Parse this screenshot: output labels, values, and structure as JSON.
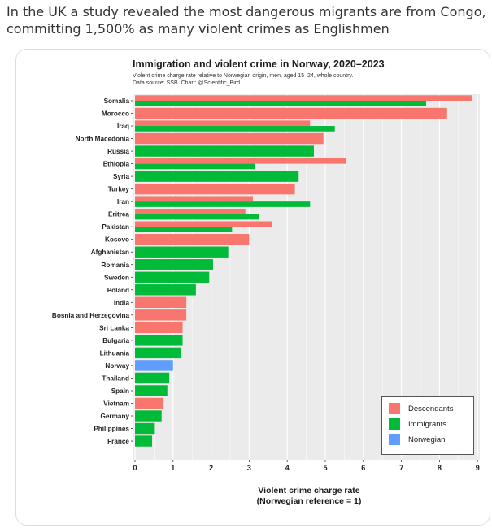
{
  "tweet": {
    "line1": "In the UK a study revealed the most dangerous migrants are from Congo,",
    "line2": "committing 1,500% as many violent crimes as Englishmen"
  },
  "colors": {
    "Descendants": "#f8766d",
    "Immigrants": "#00ba38",
    "Norwegian": "#619cff",
    "panel": "#ebebeb",
    "grid": "#ffffff"
  },
  "chart_data": {
    "type": "bar",
    "orientation": "horizontal",
    "title": "Immigration and violent crime in Norway, 2020–2023",
    "subtitle": "Violent crime charge rate relative to Norwegian origin, men, aged 15–24, whole country.",
    "source": "Data source: SSB.  Chart: @Scientific_Bird",
    "xlabel": "Violent crime charge rate",
    "xlabel2": "(Norwegian reference = 1)",
    "xlim": [
      0,
      9
    ],
    "xticks": [
      "0",
      "1",
      "2",
      "3",
      "4",
      "5",
      "6",
      "7",
      "8",
      "9"
    ],
    "grid": true,
    "legend_position": "bottom-right",
    "categories": [
      "Somalia",
      "Morocco",
      "Iraq",
      "North Macedonia",
      "Russia",
      "Ethiopia",
      "Syria",
      "Turkey",
      "Iran",
      "Eritrea",
      "Pakistan",
      "Kosovo",
      "Afghanistan",
      "Romania",
      "Sweden",
      "Poland",
      "India",
      "Bosnia and Herzegovina",
      "Sri Lanka",
      "Bulgaria",
      "Lithuania",
      "Norway",
      "Thailand",
      "Spain",
      "Vietnam",
      "Germany",
      "Philippines",
      "France"
    ],
    "series": [
      {
        "name": "Descendants",
        "values": [
          8.85,
          8.2,
          4.6,
          4.95,
          null,
          5.55,
          null,
          4.2,
          3.1,
          2.9,
          3.6,
          3.0,
          null,
          null,
          null,
          null,
          1.35,
          1.35,
          1.25,
          null,
          null,
          null,
          null,
          null,
          0.75,
          null,
          null,
          null
        ]
      },
      {
        "name": "Immigrants",
        "values": [
          7.65,
          null,
          5.25,
          null,
          4.7,
          3.15,
          4.3,
          null,
          4.6,
          3.25,
          2.55,
          null,
          2.45,
          2.05,
          1.95,
          1.6,
          null,
          null,
          null,
          1.25,
          1.2,
          null,
          0.9,
          0.85,
          null,
          0.7,
          0.5,
          0.45
        ]
      },
      {
        "name": "Norwegian",
        "values": [
          null,
          null,
          null,
          null,
          null,
          null,
          null,
          null,
          null,
          null,
          null,
          null,
          null,
          null,
          null,
          null,
          null,
          null,
          null,
          null,
          null,
          1.0,
          null,
          null,
          null,
          null,
          null,
          null
        ]
      }
    ]
  }
}
